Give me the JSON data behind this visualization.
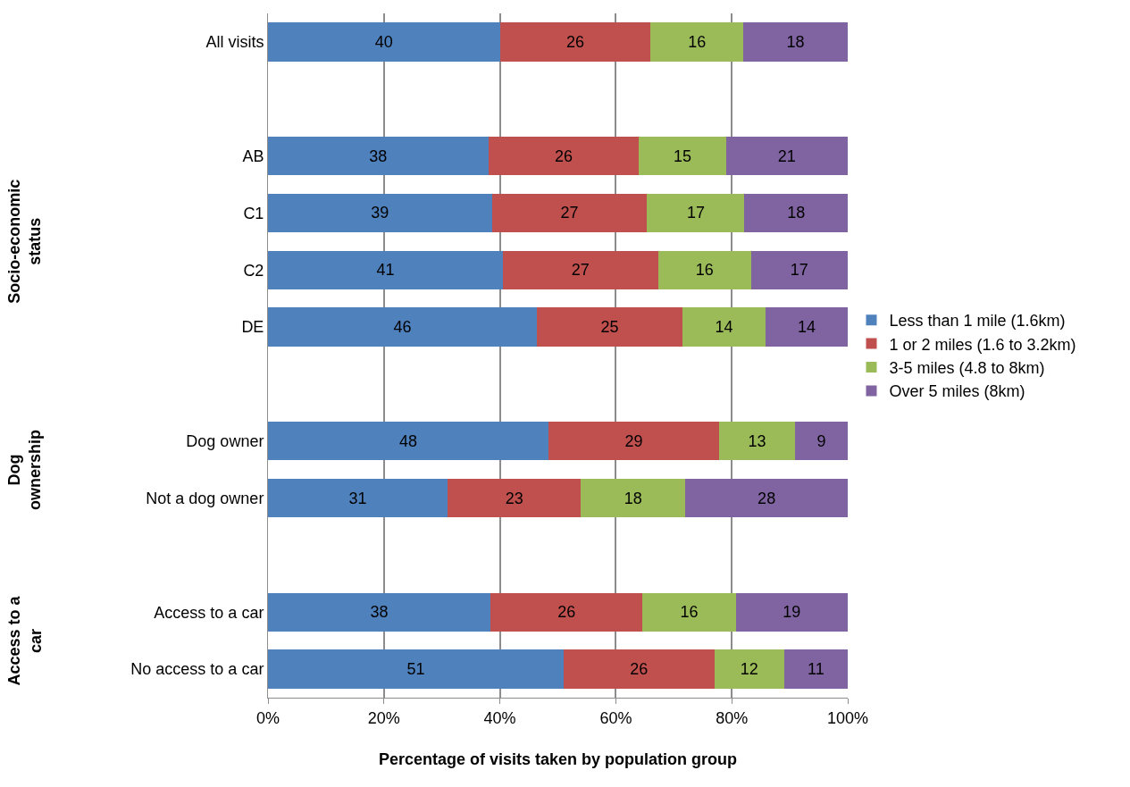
{
  "chart_data": {
    "type": "bar",
    "orientation": "horizontal",
    "stacked": true,
    "xlabel": "Percentage of visits taken by population group",
    "categories": [
      "All visits",
      null,
      "AB",
      "C1",
      "C2",
      "DE",
      null,
      "Dog owner",
      "Not a dog owner",
      null,
      "Access to a car",
      "No access to a car"
    ],
    "series": [
      {
        "name": "Less than 1 mile (1.6km)",
        "color": "#4f81bd",
        "values": [
          40,
          null,
          38,
          38.6,
          40.5,
          46.4,
          null,
          48.4,
          31,
          null,
          38.4,
          51
        ],
        "value_labels": [
          "40",
          null,
          "38",
          "39",
          "41",
          "46",
          null,
          "48",
          "31",
          null,
          "38",
          "51"
        ]
      },
      {
        "name": "1 or 2 miles (1.6 to 3.2km)",
        "color": "#c0504d",
        "values": [
          26,
          null,
          26,
          26.8,
          26.8,
          25.1,
          null,
          29.4,
          23,
          null,
          26.2,
          26
        ],
        "value_labels": [
          "26",
          null,
          "26",
          "27",
          "27",
          "25",
          null,
          "29",
          "23",
          null,
          "26",
          "26"
        ]
      },
      {
        "name": "3-5 miles (4.8 to 8km)",
        "color": "#9bbb59",
        "values": [
          16,
          null,
          15,
          16.8,
          16,
          14.3,
          null,
          13.1,
          18,
          null,
          16.1,
          12
        ],
        "value_labels": [
          "16",
          null,
          "15",
          "17",
          "16",
          "14",
          null,
          "13",
          "18",
          null,
          "16",
          "12"
        ]
      },
      {
        "name": "Over 5 miles (8km)",
        "color": "#8064a2",
        "values": [
          18,
          null,
          21,
          17.8,
          16.7,
          14.2,
          null,
          9.1,
          28,
          null,
          19.3,
          11
        ],
        "value_labels": [
          "18",
          null,
          "21",
          "18",
          "17",
          "14",
          null,
          "9",
          "28",
          null,
          "19",
          "11"
        ]
      }
    ],
    "xlim": [
      0,
      100
    ],
    "xticks": [
      {
        "value": 0,
        "label": "0%"
      },
      {
        "value": 20,
        "label": "20%"
      },
      {
        "value": 40,
        "label": "40%"
      },
      {
        "value": 60,
        "label": "60%"
      },
      {
        "value": 80,
        "label": "80%"
      },
      {
        "value": 100,
        "label": "100%"
      }
    ],
    "grid": "x",
    "legend": "right",
    "annotations": [
      "Socio-economic status",
      "Dog ownership",
      "Access to a car"
    ]
  }
}
